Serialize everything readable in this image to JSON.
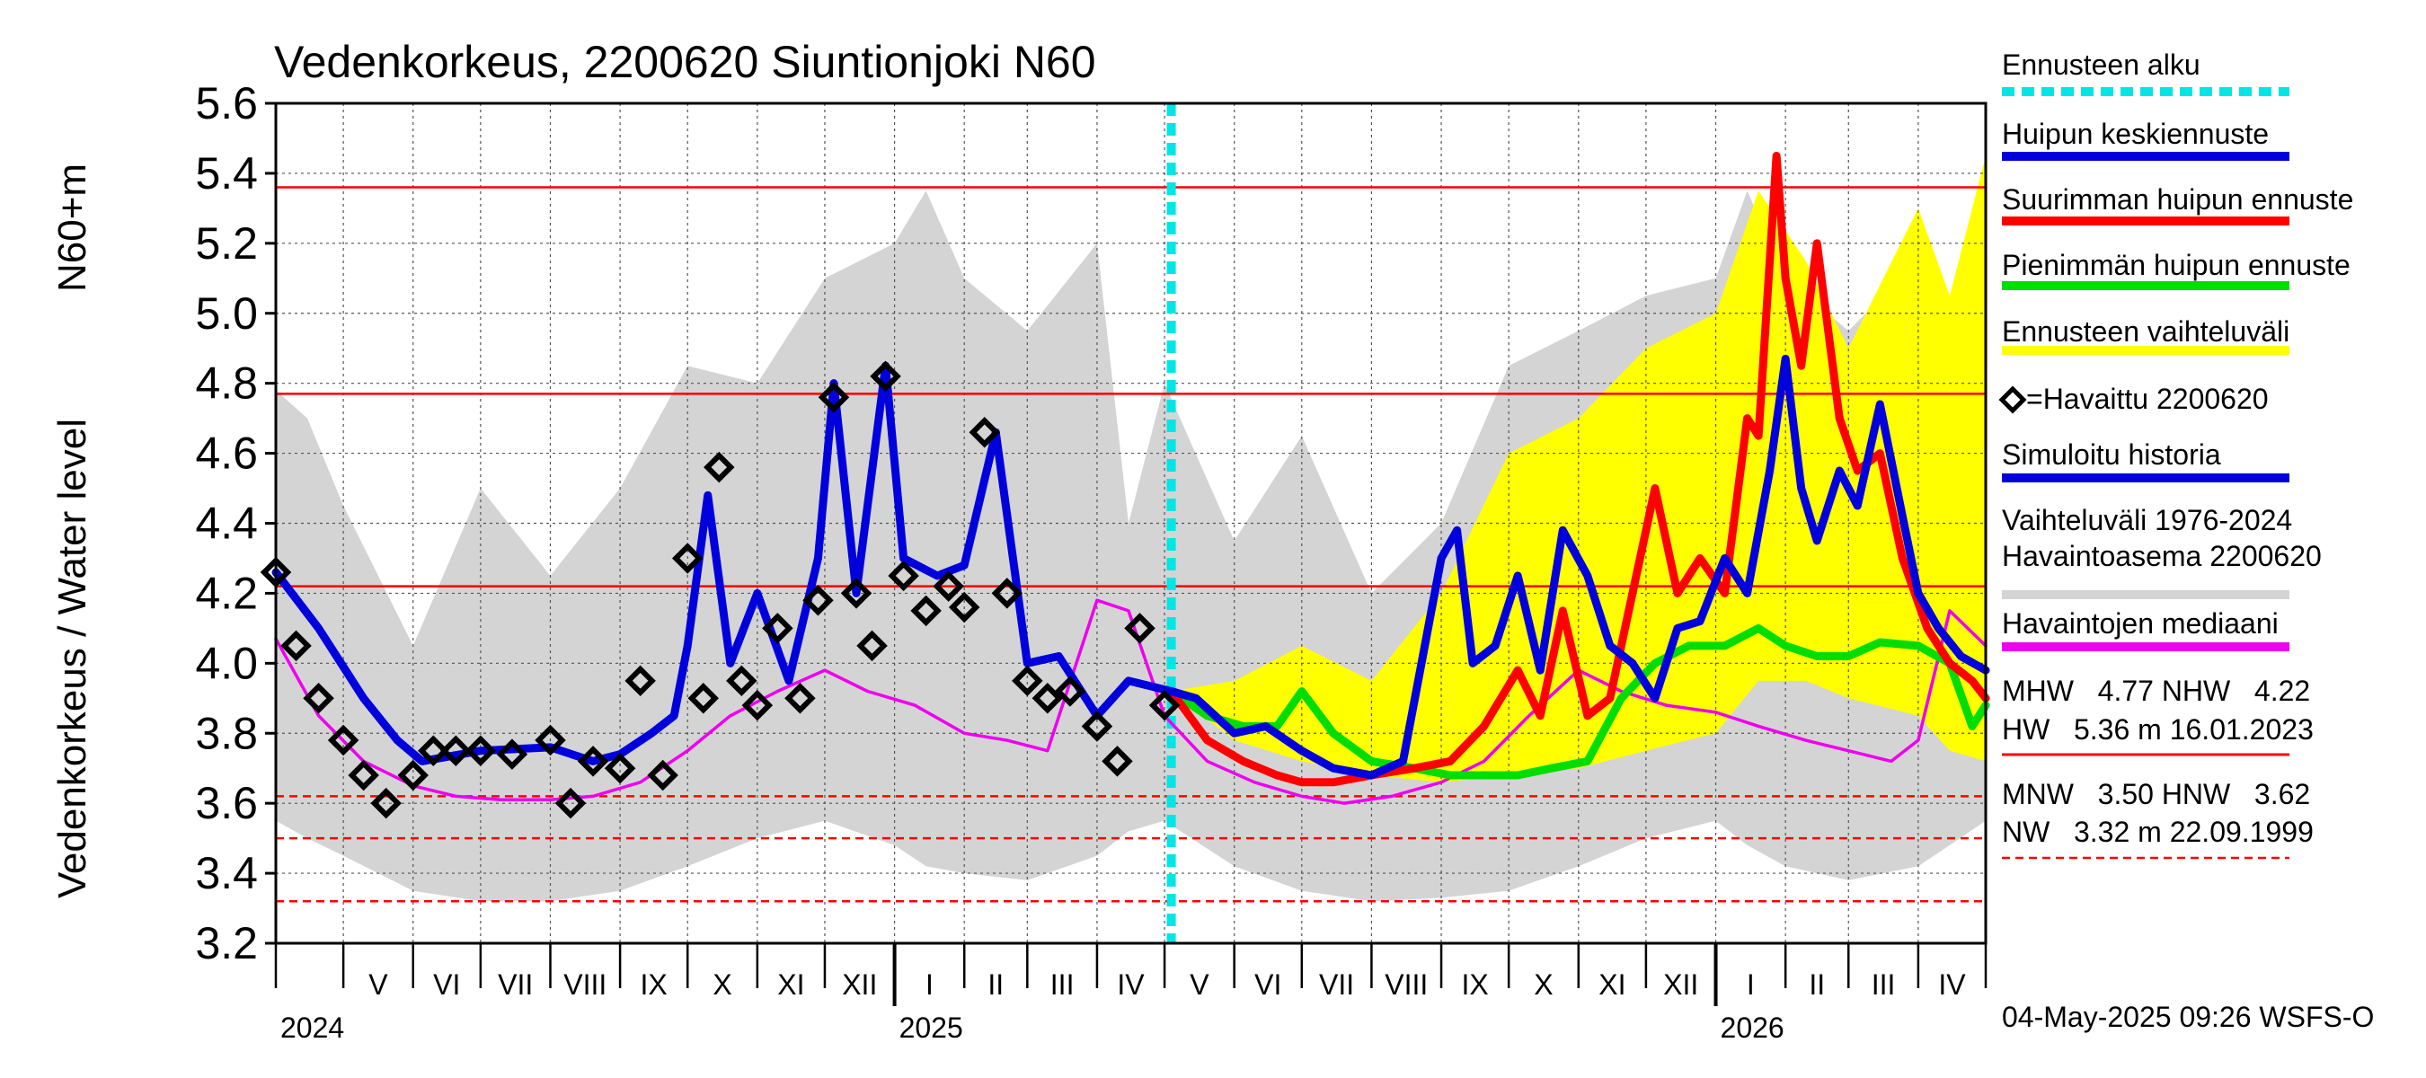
{
  "chart_data": {
    "type": "line",
    "title": "Vedenkorkeus, 2200620 Siuntionjoki N60",
    "ylabel_main": "Vedenkorkeus / Water level",
    "ylabel_unit": "N60+m",
    "ylim": [
      3.2,
      5.6
    ],
    "y_ticks": [
      "3.2",
      "3.4",
      "3.6",
      "3.8",
      "4.0",
      "4.2",
      "4.4",
      "4.6",
      "4.8",
      "5.0",
      "5.2",
      "5.4",
      "5.6"
    ],
    "x_range": [
      "2024-04-01",
      "2026-05-01"
    ],
    "month_labels": [
      "V",
      "VI",
      "VII",
      "VIII",
      "IX",
      "X",
      "XI",
      "XII",
      "I",
      "II",
      "III",
      "IV",
      "V",
      "VI",
      "VII",
      "VIII",
      "IX",
      "X",
      "XI",
      "XII",
      "I",
      "II",
      "III",
      "IV"
    ],
    "year_labels": [
      "2024",
      "2025",
      "2026"
    ],
    "forecast_start": "2025-05-04",
    "reference_lines": [
      {
        "name": "HW",
        "value": 5.36,
        "style": "solid"
      },
      {
        "name": "MHW",
        "value": 4.77,
        "style": "solid"
      },
      {
        "name": "NHW",
        "value": 4.22,
        "style": "solid"
      },
      {
        "name": "HNW",
        "value": 3.62,
        "style": "dashed"
      },
      {
        "name": "MNW",
        "value": 3.5,
        "style": "dashed"
      },
      {
        "name": "NW",
        "value": 3.32,
        "style": "dashed"
      }
    ],
    "series": [
      {
        "name": "Havaittu 2200620",
        "color": "#000000",
        "kind": "markers",
        "x": [
          "2024-04-01",
          "2024-04-10",
          "2024-04-20",
          "2024-05-01",
          "2024-05-10",
          "2024-05-20",
          "2024-06-01",
          "2024-06-10",
          "2024-06-20",
          "2024-07-01",
          "2024-07-15",
          "2024-08-01",
          "2024-08-10",
          "2024-08-20",
          "2024-09-01",
          "2024-09-10",
          "2024-09-20",
          "2024-10-01",
          "2024-10-08",
          "2024-10-15",
          "2024-10-25",
          "2024-11-01",
          "2024-11-10",
          "2024-11-20",
          "2024-11-28",
          "2024-12-05",
          "2024-12-15",
          "2024-12-22",
          "2024-12-28",
          "2025-01-05",
          "2025-01-15",
          "2025-01-25",
          "2025-02-01",
          "2025-02-10",
          "2025-02-20",
          "2025-03-01",
          "2025-03-10",
          "2025-03-20",
          "2025-04-01",
          "2025-04-10",
          "2025-04-20",
          "2025-05-01"
        ],
        "y": [
          4.26,
          4.05,
          3.9,
          3.78,
          3.68,
          3.6,
          3.68,
          3.75,
          3.75,
          3.75,
          3.74,
          3.78,
          3.6,
          3.72,
          3.7,
          3.95,
          3.68,
          4.3,
          3.9,
          4.56,
          3.95,
          3.88,
          4.1,
          3.9,
          4.18,
          4.76,
          4.2,
          4.05,
          4.82,
          4.25,
          4.15,
          4.22,
          4.16,
          4.66,
          4.2,
          3.95,
          3.9,
          3.92,
          3.82,
          3.72,
          4.1,
          3.88
        ]
      },
      {
        "name": "Simuloitu historia",
        "color": "#0000dd",
        "kind": "line",
        "x": [
          "2024-04-01",
          "2024-04-20",
          "2024-05-10",
          "2024-05-25",
          "2024-06-05",
          "2024-07-01",
          "2024-08-01",
          "2024-08-20",
          "2024-09-01",
          "2024-09-15",
          "2024-09-25",
          "2024-10-01",
          "2024-10-10",
          "2024-10-20",
          "2024-11-01",
          "2024-11-15",
          "2024-11-28",
          "2024-12-05",
          "2024-12-15",
          "2024-12-28",
          "2025-01-05",
          "2025-01-20",
          "2025-02-01",
          "2025-02-15",
          "2025-03-01",
          "2025-03-15",
          "2025-04-01",
          "2025-04-15",
          "2025-05-04"
        ],
        "y": [
          4.26,
          4.1,
          3.9,
          3.78,
          3.72,
          3.75,
          3.76,
          3.72,
          3.74,
          3.8,
          3.85,
          4.05,
          4.48,
          4.0,
          4.2,
          3.95,
          4.3,
          4.8,
          4.2,
          4.85,
          4.3,
          4.25,
          4.28,
          4.66,
          4.0,
          4.02,
          3.85,
          3.95,
          3.92
        ]
      },
      {
        "name": "Huipun keskiennuste",
        "color": "#0000dd",
        "kind": "line",
        "x": [
          "2025-05-04",
          "2025-05-15",
          "2025-06-01",
          "2025-06-15",
          "2025-07-01",
          "2025-07-15",
          "2025-08-01",
          "2025-08-15",
          "2025-09-01",
          "2025-09-08",
          "2025-09-15",
          "2025-09-25",
          "2025-10-05",
          "2025-10-15",
          "2025-10-25",
          "2025-11-05",
          "2025-11-15",
          "2025-11-25",
          "2025-12-05",
          "2025-12-15",
          "2025-12-25",
          "2026-01-05",
          "2026-01-15",
          "2026-01-25",
          "2026-02-01",
          "2026-02-08",
          "2026-02-15",
          "2026-02-25",
          "2026-03-05",
          "2026-03-15",
          "2026-03-25",
          "2026-04-01",
          "2026-04-10",
          "2026-04-20",
          "2026-05-01"
        ],
        "y": [
          3.92,
          3.9,
          3.8,
          3.82,
          3.75,
          3.7,
          3.68,
          3.72,
          4.3,
          4.38,
          4.0,
          4.05,
          4.25,
          3.98,
          4.38,
          4.25,
          4.05,
          4.0,
          3.9,
          4.1,
          4.12,
          4.3,
          4.2,
          4.55,
          4.87,
          4.5,
          4.35,
          4.55,
          4.45,
          4.74,
          4.42,
          4.2,
          4.1,
          4.02,
          3.98
        ]
      },
      {
        "name": "Suurimman huipun ennuste",
        "color": "#ff0000",
        "kind": "line",
        "x": [
          "2025-05-04",
          "2025-05-20",
          "2025-06-05",
          "2025-06-20",
          "2025-07-01",
          "2025-07-15",
          "2025-08-01",
          "2025-08-20",
          "2025-09-05",
          "2025-09-20",
          "2025-10-05",
          "2025-10-15",
          "2025-10-25",
          "2025-11-05",
          "2025-11-15",
          "2025-11-25",
          "2025-12-05",
          "2025-12-15",
          "2025-12-25",
          "2026-01-05",
          "2026-01-15",
          "2026-01-20",
          "2026-01-28",
          "2026-02-01",
          "2026-02-08",
          "2026-02-15",
          "2026-02-25",
          "2026-03-05",
          "2026-03-15",
          "2026-03-25",
          "2026-04-05",
          "2026-04-15",
          "2026-04-25",
          "2026-05-01"
        ],
        "y": [
          3.92,
          3.78,
          3.72,
          3.68,
          3.66,
          3.66,
          3.68,
          3.7,
          3.72,
          3.82,
          3.98,
          3.85,
          4.15,
          3.85,
          3.9,
          4.2,
          4.5,
          4.2,
          4.3,
          4.2,
          4.7,
          4.65,
          5.45,
          5.1,
          4.85,
          5.2,
          4.7,
          4.55,
          4.6,
          4.3,
          4.1,
          4.0,
          3.95,
          3.9
        ]
      },
      {
        "name": "Pienimmän huipun ennuste",
        "color": "#00dd00",
        "kind": "line",
        "x": [
          "2025-05-04",
          "2025-05-20",
          "2025-06-05",
          "2025-06-20",
          "2025-07-01",
          "2025-07-15",
          "2025-08-01",
          "2025-08-20",
          "2025-09-05",
          "2025-09-20",
          "2025-10-05",
          "2025-10-20",
          "2025-11-05",
          "2025-11-20",
          "2025-12-05",
          "2025-12-20",
          "2026-01-05",
          "2026-01-20",
          "2026-02-01",
          "2026-02-15",
          "2026-03-01",
          "2026-03-15",
          "2026-04-01",
          "2026-04-15",
          "2026-04-25",
          "2026-05-01"
        ],
        "y": [
          3.92,
          3.85,
          3.82,
          3.82,
          3.92,
          3.8,
          3.72,
          3.7,
          3.68,
          3.68,
          3.68,
          3.7,
          3.72,
          3.9,
          4.0,
          4.05,
          4.05,
          4.1,
          4.05,
          4.02,
          4.02,
          4.06,
          4.05,
          4.0,
          3.82,
          3.88
        ]
      },
      {
        "name": "Havaintojen mediaani",
        "color": "#ee00ee",
        "kind": "line",
        "x": [
          "2024-04-01",
          "2024-04-20",
          "2024-05-10",
          "2024-06-01",
          "2024-06-20",
          "2024-07-10",
          "2024-08-01",
          "2024-08-20",
          "2024-09-10",
          "2024-10-01",
          "2024-10-20",
          "2024-11-10",
          "2024-12-01",
          "2024-12-20",
          "2025-01-10",
          "2025-02-01",
          "2025-02-20",
          "2025-03-10",
          "2025-04-01",
          "2025-04-15",
          "2025-05-01",
          "2025-05-20",
          "2025-06-10",
          "2025-07-01",
          "2025-07-20",
          "2025-08-10",
          "2025-09-01",
          "2025-09-20",
          "2025-10-10",
          "2025-11-01",
          "2025-11-20",
          "2025-12-10",
          "2026-01-01",
          "2026-01-20",
          "2026-02-10",
          "2026-03-01",
          "2026-03-20",
          "2026-04-01",
          "2026-04-15",
          "2026-05-01"
        ],
        "y": [
          4.07,
          3.85,
          3.72,
          3.65,
          3.62,
          3.61,
          3.61,
          3.62,
          3.66,
          3.75,
          3.85,
          3.92,
          3.98,
          3.92,
          3.88,
          3.8,
          3.78,
          3.75,
          4.18,
          4.15,
          3.85,
          3.72,
          3.66,
          3.62,
          3.6,
          3.62,
          3.66,
          3.72,
          3.85,
          3.98,
          3.92,
          3.88,
          3.86,
          3.82,
          3.78,
          3.75,
          3.72,
          3.78,
          4.15,
          4.05
        ]
      }
    ],
    "band_yellow": {
      "name": "Ennusteen vaihteluväli",
      "x": [
        "2025-05-04",
        "2025-06-01",
        "2025-07-01",
        "2025-08-01",
        "2025-09-01",
        "2025-10-01",
        "2025-11-01",
        "2025-12-01",
        "2026-01-01",
        "2026-01-20",
        "2026-02-10",
        "2026-03-01",
        "2026-04-01",
        "2026-04-15",
        "2026-05-01"
      ],
      "upper": [
        3.92,
        3.95,
        4.05,
        3.95,
        4.2,
        4.6,
        4.7,
        4.9,
        5.0,
        5.35,
        5.15,
        4.9,
        5.3,
        5.05,
        5.45
      ],
      "lower": [
        3.92,
        3.78,
        3.72,
        3.68,
        3.66,
        3.68,
        3.7,
        3.75,
        3.8,
        3.95,
        3.95,
        3.9,
        3.85,
        3.75,
        3.72
      ]
    },
    "band_grey": {
      "name": "Vaihteluväli 1976-2024 Havaintoasema 2200620",
      "x": [
        "2024-04-01",
        "2024-04-15",
        "2024-05-01",
        "2024-06-01",
        "2024-07-01",
        "2024-08-01",
        "2024-09-01",
        "2024-10-01",
        "2024-11-01",
        "2024-12-01",
        "2025-01-01",
        "2025-01-15",
        "2025-02-01",
        "2025-03-01",
        "2025-04-01",
        "2025-04-15",
        "2025-05-01",
        "2025-06-01",
        "2025-07-01",
        "2025-08-01",
        "2025-09-01",
        "2025-10-01",
        "2025-11-01",
        "2025-12-01",
        "2026-01-01",
        "2026-01-15",
        "2026-02-01",
        "2026-03-01",
        "2026-04-01",
        "2026-04-15",
        "2026-05-01"
      ],
      "upper": [
        4.78,
        4.7,
        4.45,
        4.05,
        4.5,
        4.25,
        4.5,
        4.85,
        4.8,
        5.1,
        5.2,
        5.35,
        5.1,
        4.95,
        5.2,
        4.4,
        4.8,
        4.35,
        4.65,
        4.2,
        4.4,
        4.85,
        4.95,
        5.05,
        5.1,
        5.35,
        5.1,
        4.95,
        5.15,
        4.75,
        4.5
      ],
      "lower": [
        3.55,
        3.5,
        3.45,
        3.35,
        3.32,
        3.32,
        3.35,
        3.42,
        3.5,
        3.55,
        3.48,
        3.42,
        3.4,
        3.38,
        3.45,
        3.52,
        3.55,
        3.42,
        3.35,
        3.32,
        3.33,
        3.35,
        3.42,
        3.5,
        3.55,
        3.48,
        3.42,
        3.38,
        3.42,
        3.48,
        3.55
      ]
    },
    "legend": [
      {
        "label": "Ennusteen alku",
        "color": "#00e5e5",
        "style": "dotted"
      },
      {
        "label": "Huipun keskiennuste",
        "color": "#0000dd",
        "style": "line"
      },
      {
        "label": "Suurimman huipun ennuste",
        "color": "#ff0000",
        "style": "line"
      },
      {
        "label": "Pienimmän huipun ennuste",
        "color": "#00dd00",
        "style": "line"
      },
      {
        "label": "Ennusteen vaihteluväli",
        "color": "#ffff00",
        "style": "line"
      },
      {
        "label": "=Havaittu 2200620",
        "color": "#000000",
        "style": "marker"
      },
      {
        "label": "Simuloitu historia",
        "color": "#0000dd",
        "style": "line"
      },
      {
        "label": "Vaihteluväli 1976-2024",
        "label2": " Havaintoasema 2200620",
        "color": "#d4d4d4",
        "style": "line"
      },
      {
        "label": "Havaintojen mediaani",
        "color": "#ee00ee",
        "style": "line"
      }
    ],
    "stats": {
      "row1": "MHW   4.77 NHW   4.22",
      "row2": "HW   5.36 m 16.01.2023",
      "row3": "MNW   3.50 HNW   3.62",
      "row4": "NW   3.32 m 22.09.1999"
    },
    "footer": "04-May-2025 09:26 WSFS-O"
  }
}
